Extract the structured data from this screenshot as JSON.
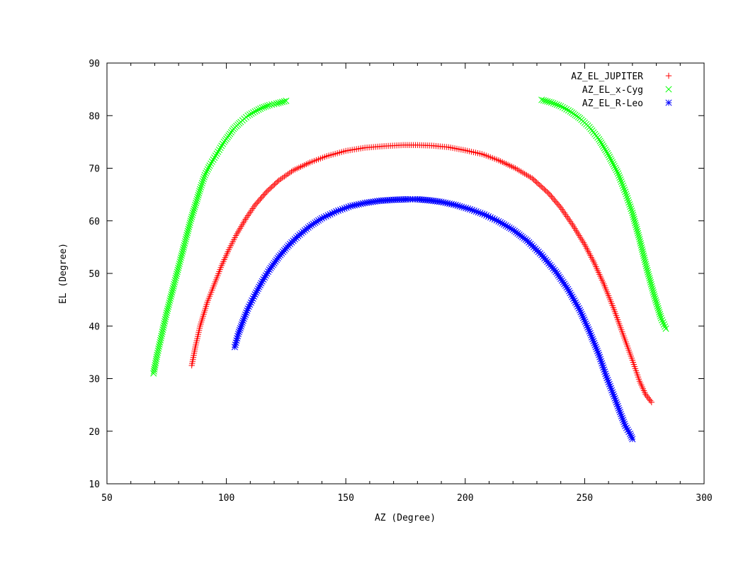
{
  "chart_data": {
    "type": "scatter",
    "xlabel": "AZ (Degree)",
    "ylabel": "EL (Degree)",
    "xlim": [
      50,
      300
    ],
    "ylim": [
      10,
      90
    ],
    "xticks": [
      50,
      100,
      150,
      200,
      250,
      300
    ],
    "yticks": [
      10,
      20,
      30,
      40,
      50,
      60,
      70,
      80,
      90
    ],
    "legend_position": "top-right",
    "series": [
      {
        "name": "AZ_EL_JUPITER",
        "color": "#ff0000",
        "marker": "plus",
        "x": [
          85.5,
          87,
          89,
          92,
          95,
          98,
          101,
          104,
          108,
          112,
          117,
          122,
          128,
          135,
          142,
          150,
          158,
          166,
          174,
          180,
          186,
          193,
          200,
          207,
          214,
          221,
          228,
          235,
          240,
          245,
          250,
          254,
          258,
          262,
          266,
          270,
          273,
          275.5,
          278
        ],
        "y": [
          32.5,
          36.0,
          40.0,
          44.5,
          48.0,
          51.5,
          54.5,
          57.2,
          60.3,
          63.0,
          65.6,
          67.7,
          69.6,
          71.1,
          72.3,
          73.3,
          73.9,
          74.2,
          74.4,
          74.4,
          74.3,
          74.0,
          73.4,
          72.7,
          71.5,
          70.0,
          68.1,
          65.2,
          62.5,
          59.2,
          55.5,
          52.0,
          48.0,
          43.5,
          38.5,
          33.5,
          29.5,
          27.0,
          25.5
        ]
      },
      {
        "name": "AZ_EL_x-Cyg",
        "color": "#00ff00",
        "marker": "cross",
        "x": [
          69.5,
          71,
          73,
          75,
          77,
          79,
          81,
          83,
          85,
          87,
          89,
          91,
          93,
          95,
          97,
          99,
          101,
          103,
          106,
          109,
          112,
          115,
          118,
          121,
          125,
          232,
          236,
          240,
          244,
          248,
          252,
          256,
          260,
          264,
          267,
          270,
          273,
          276,
          279,
          282,
          284
        ],
        "y": [
          31.0,
          34.5,
          38.5,
          42.5,
          46.0,
          49.5,
          53.0,
          56.5,
          60.0,
          63.0,
          66.0,
          68.7,
          70.5,
          72.0,
          73.5,
          75.0,
          76.2,
          77.5,
          78.8,
          80.0,
          80.8,
          81.5,
          82.0,
          82.3,
          82.8,
          83.0,
          82.5,
          81.8,
          80.8,
          79.5,
          77.8,
          75.5,
          72.5,
          69.0,
          65.5,
          61.5,
          56.5,
          51.0,
          46.0,
          41.5,
          39.5
        ]
      },
      {
        "name": "AZ_EL_R-Leo",
        "color": "#0000ff",
        "marker": "star",
        "x": [
          103.5,
          105,
          107,
          109,
          112,
          115,
          118,
          122,
          126,
          130,
          135,
          140,
          146,
          152,
          158,
          164,
          170,
          176,
          180,
          185,
          190,
          196,
          202,
          208,
          214,
          220,
          226,
          232,
          238,
          243,
          248,
          252,
          256,
          259,
          262,
          264.5,
          267,
          269,
          270
        ],
        "y": [
          36.0,
          38.5,
          41.0,
          43.3,
          46.0,
          48.5,
          50.7,
          53.2,
          55.3,
          57.1,
          59.0,
          60.5,
          61.8,
          62.8,
          63.4,
          63.8,
          64.0,
          64.1,
          64.1,
          63.9,
          63.6,
          63.0,
          62.2,
          61.2,
          59.9,
          58.3,
          56.2,
          53.5,
          50.3,
          47.0,
          43.0,
          39.0,
          34.5,
          30.5,
          27.0,
          24.0,
          21.0,
          19.5,
          18.5
        ]
      }
    ]
  }
}
